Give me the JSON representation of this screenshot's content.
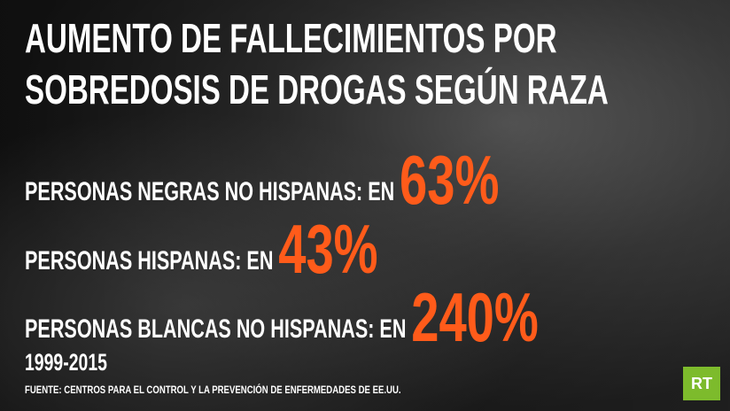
{
  "header": {
    "title": "AUMENTO DE FALLECIMIENTOS POR SOBREDOSIS DE DROGAS SEGÚN RAZA"
  },
  "items": [
    {
      "label": "PERSONAS NEGRAS NO HISPANAS: EN",
      "value": "63%"
    },
    {
      "label": "PERSONAS HISPANAS: EN",
      "value": "43%"
    },
    {
      "label": "PERSONAS BLANCAS NO HISPANAS: EN",
      "value": "240%"
    }
  ],
  "period": "1999-2015",
  "source": "FUENTE: CENTROS PARA EL CONTROL Y LA PREVENCIÓN DE ENFERMEDADES DE EE.UU.",
  "logo": "RT"
}
